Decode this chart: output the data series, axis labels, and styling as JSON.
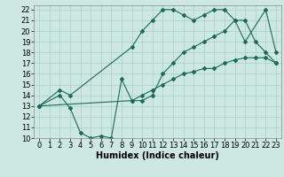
{
  "xlabel": "Humidex (Indice chaleur)",
  "background_color": "#cce8e0",
  "grid_color": "#aacfc8",
  "line_color": "#1a6b5a",
  "xlim": [
    -0.5,
    23.5
  ],
  "ylim": [
    10,
    22.4
  ],
  "xticks": [
    0,
    1,
    2,
    3,
    4,
    5,
    6,
    7,
    8,
    9,
    10,
    11,
    12,
    13,
    14,
    15,
    16,
    17,
    18,
    19,
    20,
    21,
    22,
    23
  ],
  "yticks": [
    10,
    11,
    12,
    13,
    14,
    15,
    16,
    17,
    18,
    19,
    20,
    21,
    22
  ],
  "line1_x": [
    0,
    2,
    3,
    9,
    10,
    11,
    12,
    13,
    14,
    15,
    16,
    17,
    18,
    19,
    20,
    22,
    23
  ],
  "line1_y": [
    13,
    14.5,
    14,
    18.5,
    20,
    21,
    22,
    22,
    21.5,
    21,
    21.5,
    22,
    22,
    21,
    19,
    22,
    18
  ],
  "line2_x": [
    0,
    2,
    3,
    4,
    5,
    6,
    7,
    8,
    9,
    10,
    11,
    12,
    13,
    14,
    15,
    16,
    17,
    18,
    19,
    20,
    21,
    22,
    23
  ],
  "line2_y": [
    13,
    14,
    12.8,
    10.5,
    10,
    10.2,
    10,
    15.5,
    13.5,
    13.5,
    14,
    16,
    17,
    18,
    18.5,
    19,
    19.5,
    20,
    21,
    21,
    19,
    18,
    17
  ],
  "line3_x": [
    0,
    9,
    10,
    11,
    12,
    13,
    14,
    15,
    16,
    17,
    18,
    19,
    20,
    21,
    22,
    23
  ],
  "line3_y": [
    13,
    13.5,
    14,
    14.5,
    15,
    15.5,
    16,
    16.2,
    16.5,
    16.5,
    17,
    17.3,
    17.5,
    17.5,
    17.5,
    17
  ],
  "marker_style": "D",
  "marker_size": 2,
  "linewidth": 0.8,
  "font_size": 6,
  "xlabel_fontsize": 7
}
